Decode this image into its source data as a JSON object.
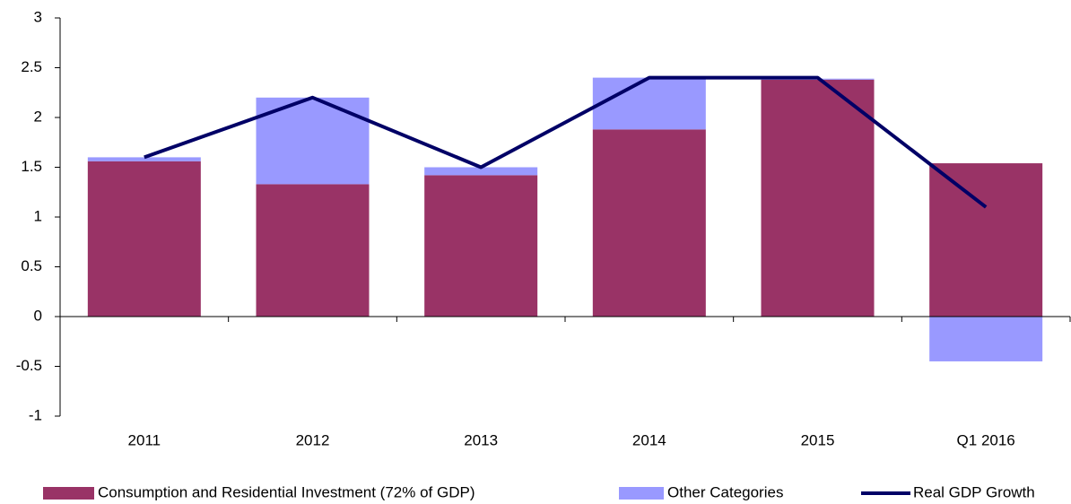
{
  "chart_data": {
    "type": "bar",
    "stacked": true,
    "categories": [
      "2011",
      "2012",
      "2013",
      "2014",
      "2015",
      "Q1 2016"
    ],
    "series": [
      {
        "name": "Consumption and Residential Investment (72% of GDP)",
        "color": "#993366",
        "values": [
          1.56,
          1.33,
          1.42,
          1.88,
          2.38,
          1.54
        ]
      },
      {
        "name": "Other Categories",
        "color": "#9999ff",
        "values": [
          0.04,
          0.87,
          0.08,
          0.52,
          0.01,
          -0.45
        ]
      },
      {
        "name": "Real GDP Growth",
        "type": "line",
        "color": "#000066",
        "values": [
          1.6,
          2.2,
          1.5,
          2.4,
          2.4,
          1.1
        ]
      }
    ],
    "ylim": [
      -1,
      3
    ],
    "yticks": [
      -1,
      -0.5,
      0,
      0.5,
      1,
      1.5,
      2,
      2.5,
      3
    ],
    "grid": false,
    "legend": "bottom"
  }
}
